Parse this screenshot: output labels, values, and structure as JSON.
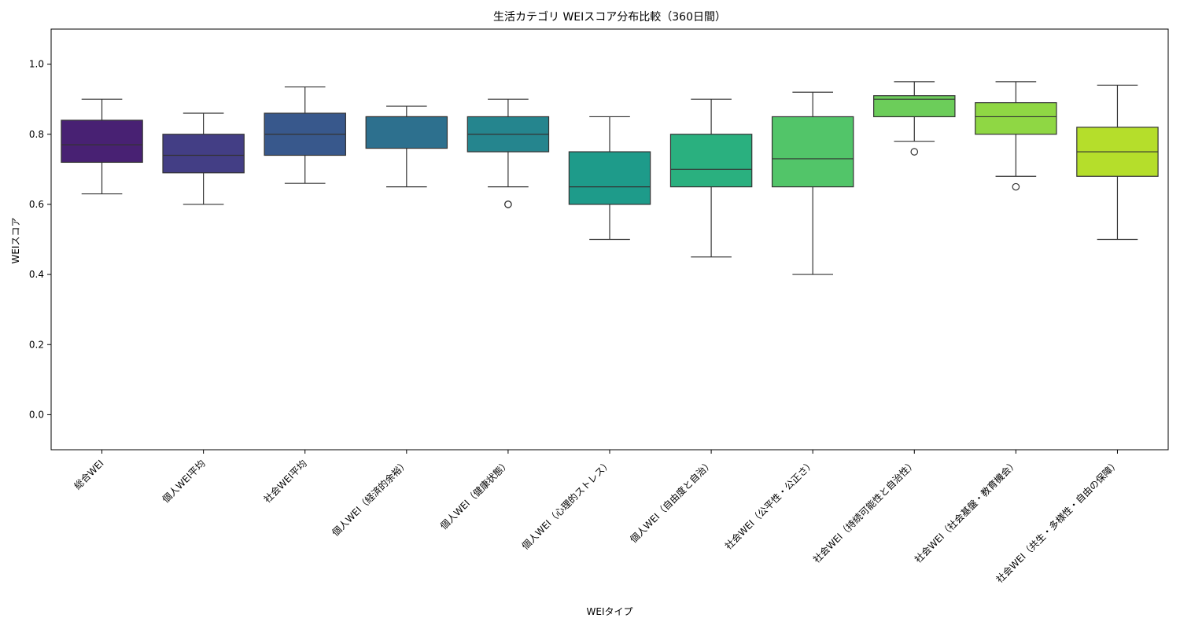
{
  "chart_data": {
    "type": "box",
    "title": "生活カテゴリ WEIスコア分布比較（360日間）",
    "xlabel": "WEIタイプ",
    "ylabel": "WEIスコア",
    "ylim": [
      -0.1,
      1.1
    ],
    "yticks": [
      0.0,
      0.2,
      0.4,
      0.6,
      0.8,
      1.0
    ],
    "ytick_labels": [
      "0.0",
      "0.2",
      "0.4",
      "0.6",
      "0.8",
      "1.0"
    ],
    "grid": false,
    "legend": "none",
    "categories": [
      "総合WEI",
      "個人WEI平均",
      "社会WEI平均",
      "個人WEI（経済的余裕）",
      "個人WEI（健康状態）",
      "個人WEI（心理的ストレス）",
      "個人WEI（自由度と自治）",
      "社会WEI（公平性・公正さ）",
      "社会WEI（持続可能性と自治性）",
      "社会WEI（社会基盤・教育機会）",
      "社会WEI（共生・多様性・自由の保障）"
    ],
    "boxes": [
      {
        "whisker_low": 0.63,
        "q1": 0.72,
        "median": 0.77,
        "q3": 0.84,
        "whisker_high": 0.9,
        "outliers": [],
        "color": "#482173"
      },
      {
        "whisker_low": 0.6,
        "q1": 0.69,
        "median": 0.74,
        "q3": 0.8,
        "whisker_high": 0.86,
        "outliers": [],
        "color": "#433e85"
      },
      {
        "whisker_low": 0.66,
        "q1": 0.74,
        "median": 0.8,
        "q3": 0.86,
        "whisker_high": 0.935,
        "outliers": [],
        "color": "#38588c"
      },
      {
        "whisker_low": 0.65,
        "q1": 0.76,
        "median": 0.85,
        "q3": 0.85,
        "whisker_high": 0.88,
        "outliers": [],
        "color": "#2d708e"
      },
      {
        "whisker_low": 0.65,
        "q1": 0.75,
        "median": 0.8,
        "q3": 0.85,
        "whisker_high": 0.9,
        "outliers": [
          0.6,
          0.6
        ],
        "color": "#25858e"
      },
      {
        "whisker_low": 0.5,
        "q1": 0.6,
        "median": 0.65,
        "q3": 0.75,
        "whisker_high": 0.85,
        "outliers": [],
        "color": "#1e9b8a"
      },
      {
        "whisker_low": 0.45,
        "q1": 0.65,
        "median": 0.7,
        "q3": 0.8,
        "whisker_high": 0.9,
        "outliers": [],
        "color": "#2ab07f"
      },
      {
        "whisker_low": 0.4,
        "q1": 0.65,
        "median": 0.73,
        "q3": 0.85,
        "whisker_high": 0.92,
        "outliers": [],
        "color": "#52c569"
      },
      {
        "whisker_low": 0.78,
        "q1": 0.85,
        "median": 0.9,
        "q3": 0.91,
        "whisker_high": 0.95,
        "outliers": [
          0.75
        ],
        "color": "#6ccd5a"
      },
      {
        "whisker_low": 0.68,
        "q1": 0.8,
        "median": 0.85,
        "q3": 0.89,
        "whisker_high": 0.95,
        "outliers": [
          0.65
        ],
        "color": "#8fd744"
      },
      {
        "whisker_low": 0.5,
        "q1": 0.68,
        "median": 0.75,
        "q3": 0.82,
        "whisker_high": 0.94,
        "outliers": [],
        "color": "#b5de2b"
      }
    ]
  }
}
